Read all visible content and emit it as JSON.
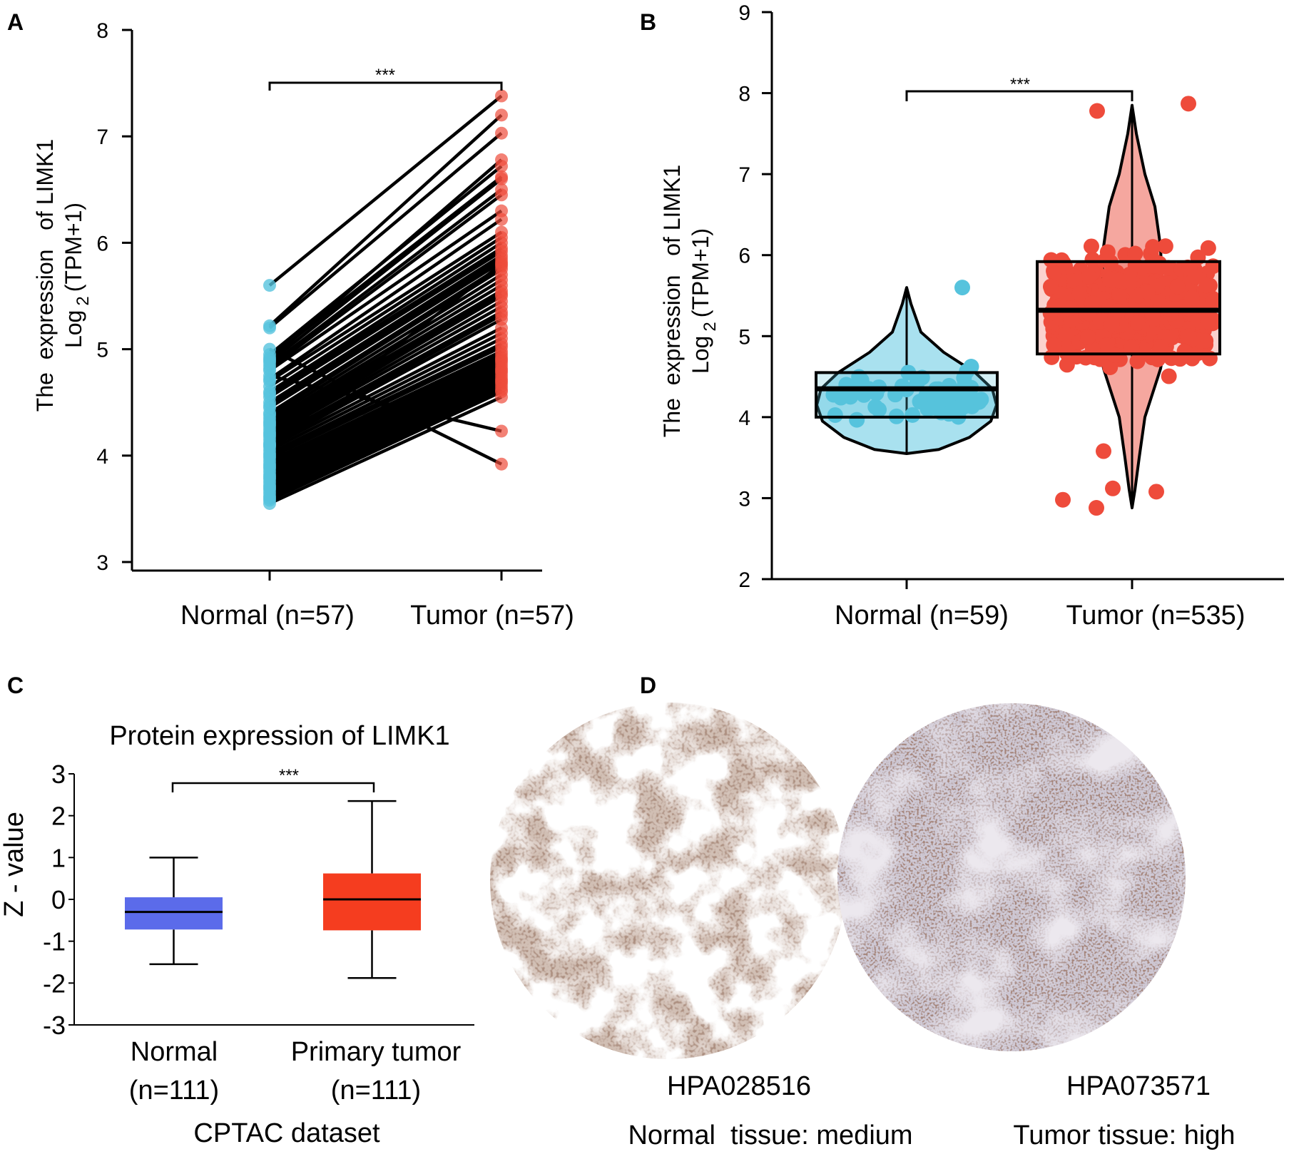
{
  "figure": {
    "panels": [
      "A",
      "B",
      "C",
      "D"
    ]
  },
  "chart_data": [
    {
      "panel": "A",
      "type": "paired-line",
      "ylabel_line1": "The  expression   of LIMK1",
      "ylabel_line2_prefix": "Log",
      "ylabel_line2_sub": "2",
      "ylabel_line2_suffix": "(TPM+1)",
      "ylim": [
        3,
        8
      ],
      "yticks": [
        "3",
        "4",
        "5",
        "6",
        "7",
        "8"
      ],
      "categories": [
        "Normal (n=57)",
        "Tumor (n=57)"
      ],
      "significance": "***",
      "colors": {
        "normal": "#56c3dd",
        "tumor": "#ee4b3b"
      },
      "pairs": [
        [
          5.6,
          7.38
        ],
        [
          5.22,
          7.2
        ],
        [
          5.2,
          7.03
        ],
        [
          4.9,
          6.78
        ],
        [
          4.95,
          6.72
        ],
        [
          4.92,
          6.62
        ],
        [
          4.88,
          6.6
        ],
        [
          4.85,
          6.5
        ],
        [
          4.82,
          6.45
        ],
        [
          4.8,
          6.3
        ],
        [
          4.72,
          6.22
        ],
        [
          4.7,
          6.1
        ],
        [
          4.65,
          6.05
        ],
        [
          4.6,
          6.0
        ],
        [
          4.58,
          5.95
        ],
        [
          4.55,
          5.92
        ],
        [
          4.5,
          5.88
        ],
        [
          4.47,
          5.85
        ],
        [
          4.45,
          5.82
        ],
        [
          4.4,
          5.78
        ],
        [
          4.38,
          5.75
        ],
        [
          4.35,
          5.7
        ],
        [
          4.32,
          5.65
        ],
        [
          4.3,
          5.6
        ],
        [
          4.28,
          5.55
        ],
        [
          4.25,
          5.52
        ],
        [
          4.22,
          5.5
        ],
        [
          4.2,
          5.45
        ],
        [
          4.18,
          5.4
        ],
        [
          4.15,
          5.35
        ],
        [
          4.12,
          5.32
        ],
        [
          4.1,
          5.28
        ],
        [
          4.08,
          5.2
        ],
        [
          4.05,
          5.15
        ],
        [
          4.02,
          5.1
        ],
        [
          4.0,
          5.05
        ],
        [
          3.98,
          5.02
        ],
        [
          3.95,
          4.98
        ],
        [
          3.92,
          4.95
        ],
        [
          3.9,
          4.92
        ],
        [
          3.88,
          4.9
        ],
        [
          3.85,
          4.88
        ],
        [
          3.82,
          4.85
        ],
        [
          3.8,
          4.82
        ],
        [
          3.78,
          4.8
        ],
        [
          3.75,
          4.78
        ],
        [
          3.72,
          4.75
        ],
        [
          3.7,
          4.72
        ],
        [
          3.68,
          4.7
        ],
        [
          3.65,
          4.68
        ],
        [
          3.62,
          4.65
        ],
        [
          3.6,
          4.62
        ],
        [
          3.58,
          4.6
        ],
        [
          3.55,
          4.55
        ],
        [
          4.75,
          4.23
        ],
        [
          5.0,
          3.92
        ],
        [
          4.1,
          5.8
        ]
      ]
    },
    {
      "panel": "B",
      "type": "violin-box-scatter",
      "ylabel_line1": "The  expression   of LIMK1",
      "ylabel_line2_prefix": "Log",
      "ylabel_line2_sub": "2",
      "ylabel_line2_suffix": "(TPM+1)",
      "ylim": [
        2,
        9
      ],
      "yticks": [
        "2",
        "3",
        "4",
        "5",
        "6",
        "7",
        "8",
        "9"
      ],
      "categories": [
        "Normal (n=59)",
        "Tumor (n=535)"
      ],
      "significance": "***",
      "series": [
        {
          "name": "Normal",
          "n": 59,
          "color": "#56c3dd",
          "violin_color": "#a9e1ef",
          "box": {
            "q1": 4.0,
            "median": 4.35,
            "q3": 4.55
          },
          "min": 3.55,
          "max": 5.6
        },
        {
          "name": "Tumor",
          "n": 535,
          "color": "#ee4b3b",
          "violin_color": "#f5a79f",
          "box": {
            "q1": 4.78,
            "median": 5.32,
            "q3": 5.92
          },
          "min": 2.88,
          "max": 7.85
        }
      ]
    },
    {
      "panel": "C",
      "type": "box",
      "title": "Protein expression of LIMK1",
      "ylabel": "Z - value",
      "xlabel": "CPTAC dataset",
      "ylim": [
        -3,
        3
      ],
      "yticks": [
        "-3",
        "-2",
        "-1",
        "0",
        "1",
        "2",
        "3"
      ],
      "categories_line1": [
        "Normal",
        "Primary tumor"
      ],
      "categories_line2": [
        "(n=111)",
        "(n=111)"
      ],
      "significance": "***",
      "series": [
        {
          "name": "Normal",
          "color": "#5b6bea",
          "whisker_low": -1.55,
          "q1": -0.72,
          "median": -0.3,
          "q3": 0.05,
          "whisker_high": 1.0
        },
        {
          "name": "Primary tumor",
          "color": "#f53d1f",
          "whisker_low": -1.88,
          "q1": -0.74,
          "median": 0.0,
          "q3": 0.62,
          "whisker_high": 2.35
        }
      ]
    }
  ],
  "panel_d": {
    "images": [
      {
        "id": "HPA028516",
        "caption": "Normal  tissue: medium",
        "type": "normal"
      },
      {
        "id": "HPA073571",
        "caption": "Tumor tissue: high",
        "type": "tumor"
      }
    ]
  }
}
